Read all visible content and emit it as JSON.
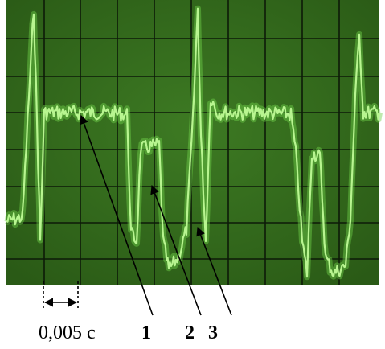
{
  "scale_label": "0,005 с",
  "markers": [
    "1",
    "2",
    "3"
  ]
}
